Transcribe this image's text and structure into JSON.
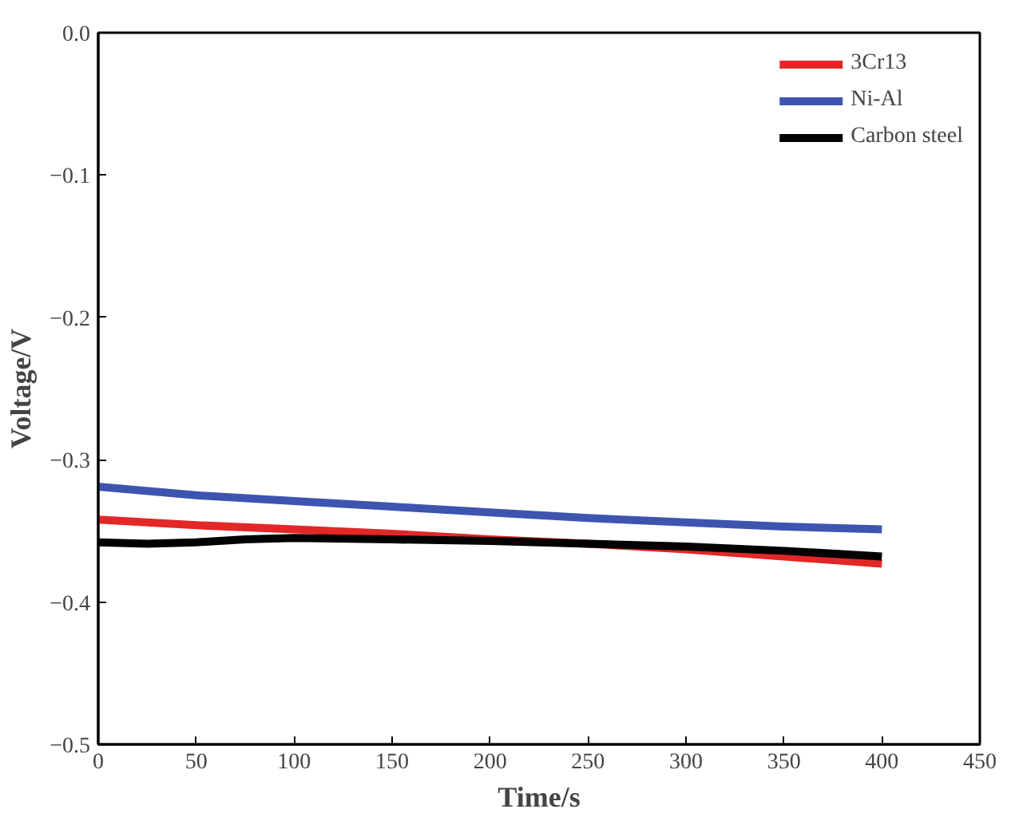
{
  "chart_data": {
    "type": "line",
    "xlabel": "Time/s",
    "ylabel": "Voltage/V",
    "xlim": [
      0,
      450
    ],
    "ylim": [
      -0.5,
      0.0
    ],
    "xticks": [
      0,
      50,
      100,
      150,
      200,
      250,
      300,
      350,
      400,
      450
    ],
    "yticks": [
      {
        "value": -0.5,
        "label": "−0.5"
      },
      {
        "value": -0.4,
        "label": "−0.4"
      },
      {
        "value": -0.3,
        "label": "−0.3"
      },
      {
        "value": -0.2,
        "label": "−0.2"
      },
      {
        "value": -0.1,
        "label": "−0.1"
      },
      {
        "value": 0.0,
        "label": "0.0"
      }
    ],
    "grid": false,
    "legend": "top right",
    "line_style": "solid",
    "marker": "none",
    "series": [
      {
        "name": "3Cr13",
        "color": "#e32626",
        "x": [
          0,
          50,
          100,
          150,
          200,
          250,
          300,
          350,
          400
        ],
        "values": [
          -0.342,
          -0.346,
          -0.349,
          -0.352,
          -0.356,
          -0.359,
          -0.363,
          -0.368,
          -0.373
        ]
      },
      {
        "name": "Ni-Al",
        "color": "#3d55b0",
        "x": [
          0,
          50,
          100,
          150,
          200,
          250,
          300,
          350,
          400
        ],
        "values": [
          -0.319,
          -0.325,
          -0.329,
          -0.333,
          -0.337,
          -0.341,
          -0.344,
          -0.347,
          -0.349
        ]
      },
      {
        "name": "Carbon steel",
        "color": "#000000",
        "x": [
          0,
          25,
          50,
          75,
          100,
          150,
          200,
          250,
          300,
          350,
          400
        ],
        "values": [
          -0.358,
          -0.359,
          -0.358,
          -0.356,
          -0.355,
          -0.356,
          -0.357,
          -0.359,
          -0.361,
          -0.364,
          -0.368
        ]
      }
    ]
  }
}
